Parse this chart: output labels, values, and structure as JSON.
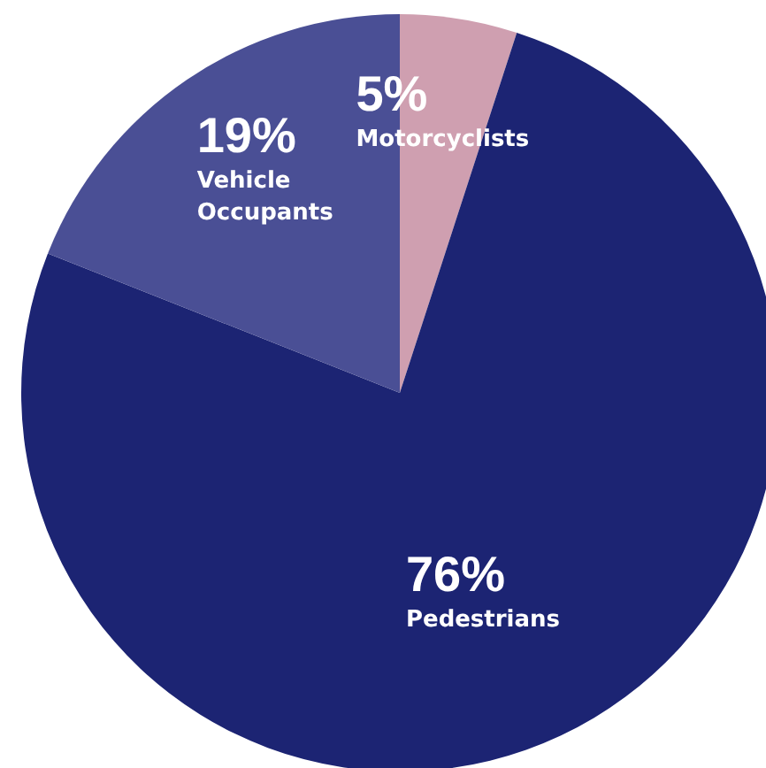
{
  "chart_data": {
    "type": "pie",
    "categories": [
      "Motorcyclists",
      "Pedestrians",
      "Vehicle Occupants"
    ],
    "values": [
      5,
      76,
      19
    ],
    "value_labels": [
      "5%",
      "76%",
      "19%"
    ],
    "colors": [
      "#cf9fb0",
      "#1c2473",
      "#4a4f95"
    ],
    "legend": false
  }
}
